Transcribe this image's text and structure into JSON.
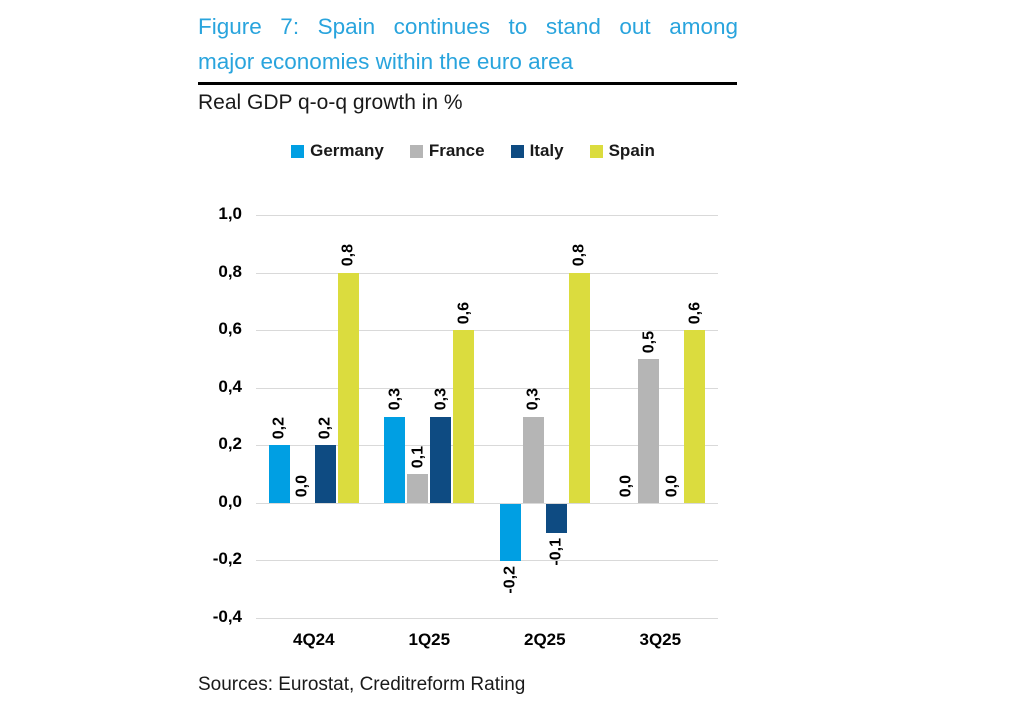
{
  "figure": {
    "title_line1": "Figure 7: Spain continues to stand out among",
    "title_line2": "major economies within the euro area",
    "title_color": "#29A4DD",
    "subtitle": "Real GDP q-o-q growth in %",
    "sources": "Sources: Eurostat, Creditreform Rating"
  },
  "chart_data": {
    "type": "bar",
    "title": "Real GDP q-o-q growth in %",
    "categories": [
      "4Q24",
      "1Q25",
      "2Q25",
      "3Q25"
    ],
    "series": [
      {
        "name": "Germany",
        "color": "#009FE3",
        "values": [
          0.2,
          0.3,
          -0.2,
          0.0
        ]
      },
      {
        "name": "France",
        "color": "#B5B5B5",
        "values": [
          0.0,
          0.1,
          0.3,
          0.5
        ]
      },
      {
        "name": "Italy",
        "color": "#0E4B82",
        "values": [
          0.2,
          0.3,
          -0.1,
          0.0
        ]
      },
      {
        "name": "Spain",
        "color": "#DBDC3E",
        "values": [
          0.8,
          0.6,
          0.8,
          0.6
        ]
      }
    ],
    "ylim": [
      -0.4,
      1.0
    ],
    "ytick_step": 0.2,
    "ytick_labels": [
      "1,0",
      "0,8",
      "0,6",
      "0,4",
      "0,2",
      "0,0",
      "-0,2",
      "-0,4"
    ],
    "decimal_separator": ",",
    "grid": true,
    "gridline_color": "#D9D9D9",
    "legend_position": "top",
    "data_labels": "all bars labeled, rotated 90° counterclockwise, comma decimals"
  }
}
